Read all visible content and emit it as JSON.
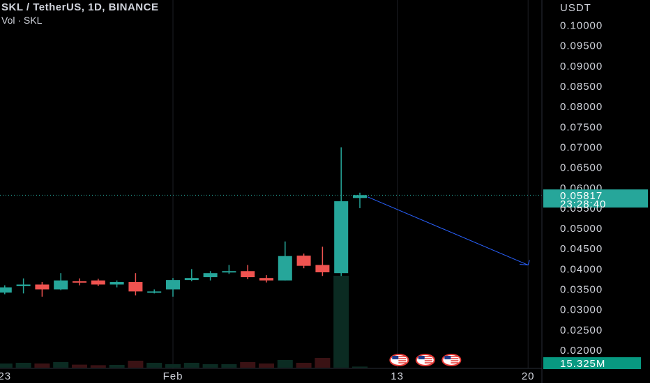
{
  "header": {
    "title": "SKL / TetherUS, 1D, BINANCE",
    "subtitle": "Vol · SKL"
  },
  "colors": {
    "up": "#26a69a",
    "down": "#ef5350",
    "vol_up": "#0b2b22",
    "vol_down": "#3a1214",
    "trendline": "#2962ff",
    "background": "#000000"
  },
  "chart_data": {
    "type": "candlestick",
    "ylabel": "USDT",
    "ylim": [
      0.018,
      0.1045
    ],
    "y_ticks": [
      0.02,
      0.025,
      0.03,
      0.035,
      0.04,
      0.045,
      0.05,
      0.055,
      0.06,
      0.065,
      0.07,
      0.075,
      0.08,
      0.085,
      0.09,
      0.095,
      0.1
    ],
    "y_tick_labels": [
      "0.02000",
      "0.02500",
      "0.03000",
      "0.03500",
      "0.04000",
      "0.04500",
      "0.05000",
      "0.05500",
      "0.06000",
      "0.06500",
      "0.07000",
      "0.07500",
      "0.08000",
      "0.08500",
      "0.09000",
      "0.09500",
      "0.10000"
    ],
    "x_tick_labels": [
      {
        "label": "23",
        "day": -9
      },
      {
        "label": "Feb",
        "day": 0
      },
      {
        "label": "13",
        "day": 12
      },
      {
        "label": "20",
        "day": 19
      }
    ],
    "candles": [
      {
        "day": -9,
        "o": 0.0342,
        "h": 0.036,
        "l": 0.0338,
        "c": 0.0355,
        "v": 0.3
      },
      {
        "day": -8,
        "o": 0.0358,
        "h": 0.0377,
        "l": 0.034,
        "c": 0.0362,
        "v": 0.35
      },
      {
        "day": -7,
        "o": 0.0362,
        "h": 0.0368,
        "l": 0.0332,
        "c": 0.035,
        "v": 0.3
      },
      {
        "day": -6,
        "o": 0.035,
        "h": 0.039,
        "l": 0.0348,
        "c": 0.0372,
        "v": 0.4
      },
      {
        "day": -5,
        "o": 0.037,
        "h": 0.0377,
        "l": 0.036,
        "c": 0.0368,
        "v": 0.22
      },
      {
        "day": -4,
        "o": 0.0372,
        "h": 0.0376,
        "l": 0.0358,
        "c": 0.0362,
        "v": 0.18
      },
      {
        "day": -3,
        "o": 0.0362,
        "h": 0.0372,
        "l": 0.0355,
        "c": 0.0368,
        "v": 0.2
      },
      {
        "day": -2,
        "o": 0.0368,
        "h": 0.039,
        "l": 0.0335,
        "c": 0.0345,
        "v": 0.5
      },
      {
        "day": -1,
        "o": 0.0343,
        "h": 0.035,
        "l": 0.034,
        "c": 0.0345,
        "v": 0.35
      },
      {
        "day": 0,
        "o": 0.035,
        "h": 0.0378,
        "l": 0.0332,
        "c": 0.0373,
        "v": 0.25
      },
      {
        "day": 1,
        "o": 0.0373,
        "h": 0.04,
        "l": 0.037,
        "c": 0.0378,
        "v": 0.35
      },
      {
        "day": 2,
        "o": 0.038,
        "h": 0.0395,
        "l": 0.0372,
        "c": 0.039,
        "v": 0.25
      },
      {
        "day": 3,
        "o": 0.0392,
        "h": 0.041,
        "l": 0.0388,
        "c": 0.0395,
        "v": 0.25
      },
      {
        "day": 4,
        "o": 0.0395,
        "h": 0.041,
        "l": 0.0375,
        "c": 0.038,
        "v": 0.4
      },
      {
        "day": 5,
        "o": 0.0378,
        "h": 0.0385,
        "l": 0.0367,
        "c": 0.0372,
        "v": 0.3
      },
      {
        "day": 6,
        "o": 0.0372,
        "h": 0.0468,
        "l": 0.0372,
        "c": 0.0432,
        "v": 0.55
      },
      {
        "day": 7,
        "o": 0.0433,
        "h": 0.0438,
        "l": 0.0402,
        "c": 0.0408,
        "v": 0.35
      },
      {
        "day": 8,
        "o": 0.041,
        "h": 0.0455,
        "l": 0.0383,
        "c": 0.0392,
        "v": 0.7
      },
      {
        "day": 9,
        "o": 0.039,
        "h": 0.07,
        "l": 0.0383,
        "c": 0.0567,
        "v": 6.6
      },
      {
        "day": 10,
        "o": 0.0575,
        "h": 0.0588,
        "l": 0.055,
        "c": 0.0582,
        "v": 0.08
      }
    ],
    "last_price": "0.05817",
    "countdown": "23:28:40",
    "volume_label": "15.325M",
    "trendline": {
      "from": {
        "day": 10.4,
        "price": 0.0578
      },
      "to": {
        "day": 19,
        "price": 0.041
      }
    }
  }
}
